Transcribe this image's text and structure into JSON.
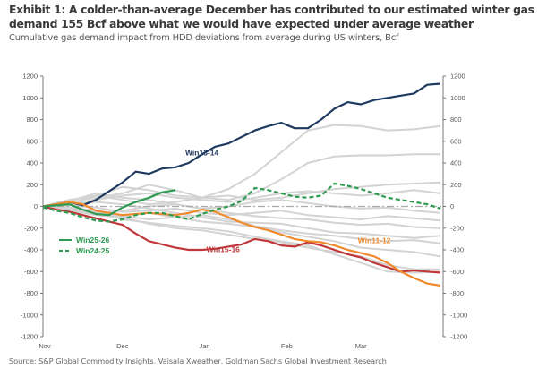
{
  "header": {
    "title": "Exhibit 1: A colder-than-average December has contributed to our estimated winter gas demand 155 Bcf above what we would have expected under average weather",
    "subtitle": "Cumulative gas demand impact from HDD deviations from average during US winters, Bcf"
  },
  "footer": {
    "source": "Source: S&P Global Commodity Insights, Vaisala Xweather, Goldman Sachs Global Investment Research"
  },
  "chart_data": {
    "type": "line",
    "title": "Cumulative gas demand impact from HDD deviations from average during US winters, Bcf",
    "xlabel": "",
    "ylabel": "Bcf",
    "x_unit": "days since Nov 1",
    "xlim": [
      0,
      151
    ],
    "ylim": [
      -1200,
      1200
    ],
    "y_ticks": [
      1200,
      1000,
      800,
      600,
      400,
      200,
      0,
      -200,
      -400,
      -600,
      -800,
      -1000,
      -1200
    ],
    "x_ticks": [
      {
        "label": "Nov",
        "x": 0
      },
      {
        "label": "Dec",
        "x": 30
      },
      {
        "label": "Jan",
        "x": 61
      },
      {
        "label": "Feb",
        "x": 92
      },
      {
        "label": "Mar",
        "x": 120
      }
    ],
    "dual_y_axis": true,
    "grid": false,
    "zero_line": {
      "style": "dash-dot",
      "color": "#aaaaaa"
    },
    "legend": {
      "placement": "lower-left",
      "entries": [
        {
          "name": "Win25-26",
          "style": "solid",
          "color": "#2e9a52"
        },
        {
          "name": "Win24-25",
          "style": "dashed",
          "color": "#2e9a52"
        }
      ]
    },
    "annotations": [
      {
        "text": "Win13-14",
        "series": "Win13-14",
        "x": 60,
        "y": 470,
        "color": "#1f3a5f"
      },
      {
        "text": "Win15-16",
        "series": "Win15-16",
        "x": 68,
        "y": -420,
        "color": "#c0373a"
      },
      {
        "text": "Win11-12",
        "series": "Win11-12",
        "x": 125,
        "y": -340,
        "color": "#f08a2c"
      }
    ],
    "highlighted_series": [
      {
        "name": "Win13-14",
        "color": "#1f3a5f",
        "style": "solid",
        "x": [
          0,
          5,
          10,
          15,
          20,
          25,
          30,
          35,
          40,
          45,
          50,
          55,
          60,
          65,
          70,
          75,
          80,
          85,
          90,
          95,
          100,
          105,
          110,
          115,
          120,
          125,
          130,
          135,
          140,
          145,
          150
        ],
        "y": [
          0,
          20,
          40,
          10,
          60,
          140,
          220,
          320,
          300,
          350,
          360,
          400,
          480,
          550,
          580,
          640,
          700,
          740,
          770,
          720,
          720,
          800,
          900,
          960,
          940,
          980,
          1000,
          1020,
          1040,
          1120,
          1130
        ]
      },
      {
        "name": "Win15-16",
        "color": "#c0373a",
        "style": "solid",
        "x": [
          0,
          5,
          10,
          15,
          20,
          25,
          30,
          35,
          40,
          45,
          50,
          55,
          60,
          65,
          70,
          75,
          80,
          85,
          90,
          95,
          100,
          105,
          110,
          115,
          120,
          125,
          130,
          135,
          140,
          145,
          150
        ],
        "y": [
          0,
          -30,
          -50,
          -80,
          -110,
          -140,
          -170,
          -250,
          -320,
          -350,
          -380,
          -400,
          -400,
          -390,
          -370,
          -350,
          -300,
          -320,
          -360,
          -370,
          -330,
          -360,
          -400,
          -440,
          -470,
          -520,
          -560,
          -600,
          -590,
          -600,
          -610
        ]
      },
      {
        "name": "Win11-12",
        "color": "#f08a2c",
        "style": "solid",
        "x": [
          0,
          5,
          10,
          15,
          20,
          25,
          30,
          35,
          40,
          45,
          50,
          55,
          60,
          65,
          70,
          75,
          80,
          85,
          90,
          95,
          100,
          105,
          110,
          115,
          120,
          125,
          130,
          135,
          140,
          145,
          150
        ],
        "y": [
          0,
          20,
          40,
          20,
          -40,
          -60,
          -80,
          -70,
          -60,
          -70,
          -80,
          -60,
          -30,
          -50,
          -100,
          -150,
          -190,
          -220,
          -260,
          -300,
          -320,
          -330,
          -360,
          -400,
          -430,
          -460,
          -520,
          -600,
          -660,
          -710,
          -730
        ]
      },
      {
        "name": "Win25-26",
        "color": "#2e9a52",
        "style": "solid",
        "x": [
          0,
          5,
          10,
          15,
          20,
          25,
          30,
          35,
          40,
          45,
          50
        ],
        "y": [
          0,
          10,
          20,
          -30,
          -70,
          -80,
          -10,
          40,
          80,
          130,
          150
        ]
      },
      {
        "name": "Win24-25",
        "color": "#2e9a52",
        "style": "dashed",
        "x": [
          0,
          5,
          10,
          15,
          20,
          25,
          30,
          35,
          40,
          45,
          50,
          55,
          60,
          65,
          70,
          75,
          80,
          85,
          90,
          95,
          100,
          105,
          110,
          115,
          120,
          125,
          130,
          135,
          140,
          145,
          150
        ],
        "y": [
          -10,
          -40,
          -60,
          -100,
          -130,
          -140,
          -120,
          -80,
          -60,
          -60,
          -90,
          -120,
          -70,
          -30,
          0,
          50,
          170,
          150,
          120,
          90,
          80,
          100,
          210,
          190,
          160,
          120,
          80,
          60,
          40,
          20,
          -20
        ]
      }
    ],
    "background_series_color": "#d3d3d3",
    "background_series": [
      {
        "x": [
          0,
          10,
          20,
          30,
          40,
          50,
          60,
          70,
          80,
          90,
          100,
          110,
          120,
          130,
          140,
          150
        ],
        "y": [
          0,
          60,
          100,
          180,
          150,
          100,
          80,
          160,
          300,
          500,
          700,
          750,
          740,
          700,
          710,
          740
        ]
      },
      {
        "x": [
          0,
          10,
          20,
          30,
          40,
          50,
          60,
          70,
          80,
          90,
          100,
          110,
          120,
          130,
          140,
          150
        ],
        "y": [
          0,
          40,
          80,
          120,
          200,
          150,
          80,
          60,
          120,
          250,
          400,
          460,
          470,
          470,
          480,
          480
        ]
      },
      {
        "x": [
          0,
          10,
          20,
          30,
          40,
          50,
          60,
          70,
          80,
          90,
          100,
          110,
          120,
          130,
          140,
          150
        ],
        "y": [
          0,
          30,
          100,
          60,
          20,
          40,
          80,
          100,
          60,
          80,
          120,
          160,
          180,
          200,
          210,
          220
        ]
      },
      {
        "x": [
          0,
          10,
          20,
          30,
          40,
          50,
          60,
          70,
          80,
          90,
          100,
          110,
          120,
          130,
          140,
          150
        ],
        "y": [
          0,
          20,
          60,
          100,
          120,
          80,
          60,
          40,
          80,
          120,
          140,
          120,
          100,
          120,
          150,
          120
        ]
      },
      {
        "x": [
          0,
          10,
          20,
          30,
          40,
          50,
          60,
          70,
          80,
          90,
          100,
          110,
          120,
          130,
          140,
          150
        ],
        "y": [
          0,
          50,
          120,
          80,
          60,
          20,
          -20,
          0,
          40,
          60,
          30,
          0,
          -20,
          -10,
          -40,
          -60
        ]
      },
      {
        "x": [
          0,
          10,
          20,
          30,
          40,
          50,
          60,
          70,
          80,
          90,
          100,
          110,
          120,
          130,
          140,
          150
        ],
        "y": [
          0,
          -20,
          -60,
          -40,
          0,
          20,
          -20,
          -60,
          -90,
          -110,
          -120,
          -150,
          -170,
          -160,
          -190,
          -200
        ]
      },
      {
        "x": [
          0,
          10,
          20,
          30,
          40,
          50,
          60,
          70,
          80,
          90,
          100,
          110,
          120,
          130,
          140,
          150
        ],
        "y": [
          0,
          -30,
          -50,
          -90,
          -120,
          -100,
          -80,
          -120,
          -180,
          -220,
          -250,
          -270,
          -300,
          -320,
          -310,
          -340
        ]
      },
      {
        "x": [
          0,
          10,
          20,
          30,
          40,
          50,
          60,
          70,
          80,
          90,
          100,
          110,
          120,
          130,
          140,
          150
        ],
        "y": [
          0,
          -10,
          -40,
          -80,
          -60,
          -100,
          -140,
          -160,
          -190,
          -240,
          -280,
          -320,
          -380,
          -400,
          -420,
          -460
        ]
      },
      {
        "x": [
          0,
          10,
          20,
          30,
          40,
          50,
          60,
          70,
          80,
          90,
          100,
          110,
          120,
          130,
          140,
          150
        ],
        "y": [
          0,
          -40,
          -80,
          -100,
          -160,
          -200,
          -220,
          -260,
          -300,
          -330,
          -380,
          -420,
          -460,
          -540,
          -580,
          -580
        ]
      },
      {
        "x": [
          0,
          10,
          20,
          30,
          40,
          50,
          60,
          70,
          80,
          90,
          100,
          110,
          120,
          130,
          140,
          150
        ],
        "y": [
          0,
          -30,
          -60,
          -120,
          -150,
          -180,
          -200,
          -230,
          -280,
          -320,
          -360,
          -440,
          -520,
          -600,
          -610,
          -600
        ]
      },
      {
        "x": [
          0,
          10,
          20,
          30,
          40,
          50,
          60,
          70,
          80,
          90,
          100,
          110,
          120,
          130,
          140,
          150
        ],
        "y": [
          0,
          20,
          40,
          20,
          -20,
          -60,
          -100,
          -140,
          -150,
          -160,
          -200,
          -240,
          -250,
          -270,
          -290,
          -270
        ]
      },
      {
        "x": [
          0,
          10,
          20,
          30,
          40,
          50,
          60,
          70,
          80,
          90,
          100,
          110,
          120,
          130,
          140,
          150
        ],
        "y": [
          0,
          10,
          -10,
          -50,
          -40,
          -20,
          -60,
          -80,
          -60,
          -40,
          -80,
          -100,
          -120,
          -90,
          -110,
          -130
        ]
      }
    ]
  }
}
